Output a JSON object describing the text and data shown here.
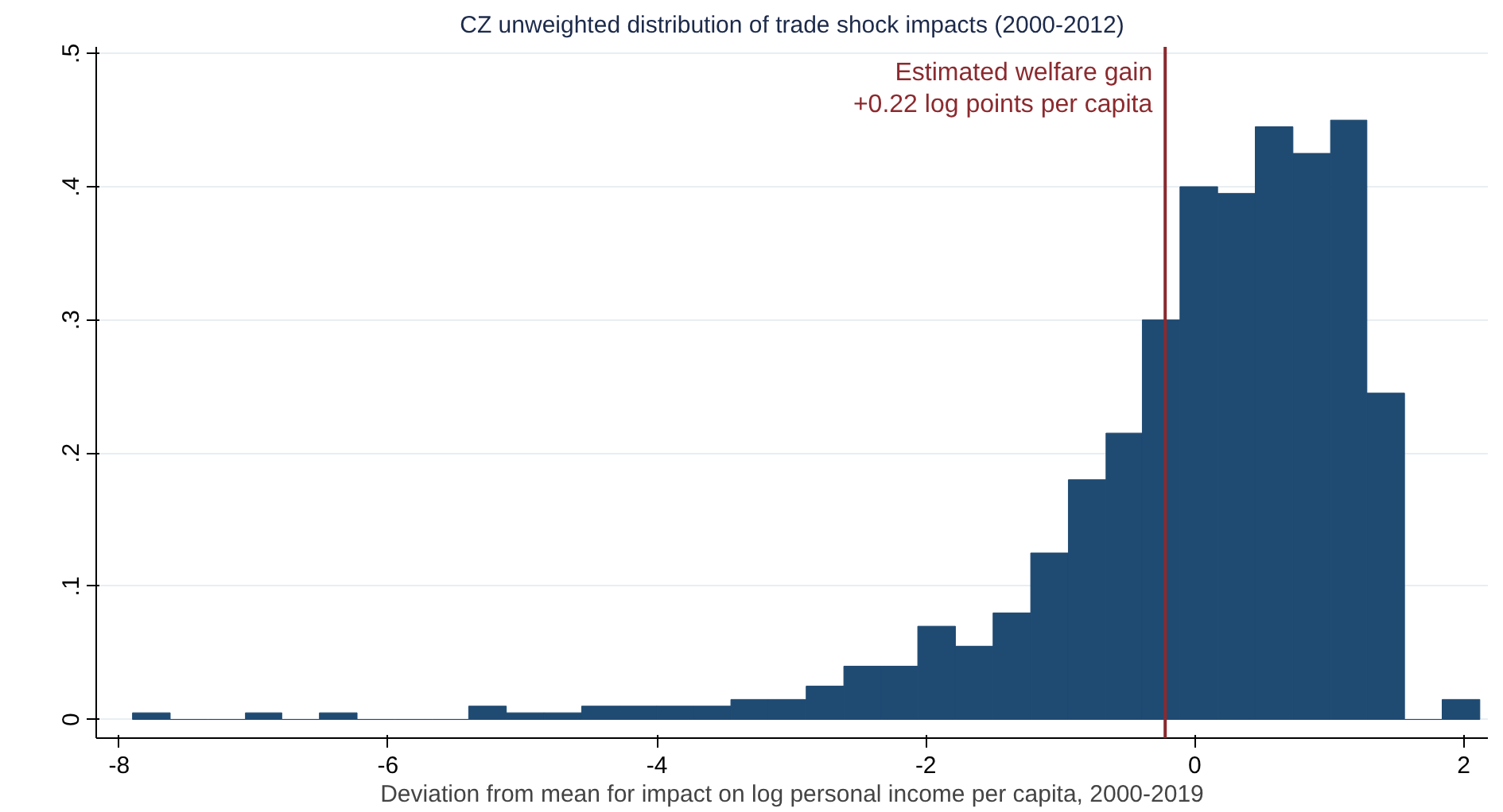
{
  "chart_data": {
    "type": "histogram",
    "title": "CZ unweighted distribution of trade shock impacts (2000-2012)",
    "xlabel": "Deviation from mean for impact on log personal income per capita, 2000-2019",
    "bins": [
      -7.9,
      -7.62,
      -7.34,
      -7.06,
      -6.79,
      -6.51,
      -6.23,
      -5.95,
      -5.67,
      -5.4,
      -5.12,
      -4.84,
      -4.56,
      -4.28,
      -4.0,
      -3.73,
      -3.45,
      -3.17,
      -2.89,
      -2.61,
      -2.33,
      -2.06,
      -1.78,
      -1.5,
      -1.22,
      -0.94,
      -0.66,
      -0.39,
      -0.11,
      0.17,
      0.45,
      0.73,
      1.01,
      1.28,
      1.56,
      1.84,
      2.12
    ],
    "values": [
      0.005,
      0,
      0,
      0.005,
      0,
      0.005,
      0,
      0,
      0,
      0.01,
      0.005,
      0.005,
      0.01,
      0.01,
      0.01,
      0.01,
      0.015,
      0.015,
      0.025,
      0.04,
      0.04,
      0.07,
      0.055,
      0.08,
      0.125,
      0.18,
      0.215,
      0.3,
      0.4,
      0.395,
      0.445,
      0.425,
      0.45,
      0.245,
      0,
      0.015
    ],
    "color": "#1f4a72",
    "xlim": [
      -8.17,
      2.18
    ],
    "xticks": [
      -8,
      -6,
      -4,
      -2,
      0,
      2
    ],
    "ylim": [
      -0.014,
      0.505
    ],
    "yticks": [
      {
        "value": 0,
        "label": "0"
      },
      {
        "value": 0.1,
        "label": ".1"
      },
      {
        "value": 0.2,
        "label": ".2"
      },
      {
        "value": 0.3,
        "label": ".3"
      },
      {
        "value": 0.4,
        "label": ".4"
      },
      {
        "value": 0.5,
        "label": ".5"
      }
    ],
    "grid": "y",
    "ref_lines": [
      {
        "axis": "x",
        "value": -0.22,
        "label": "Estimated welfare gain\n+0.22 log points per capita",
        "color": "#8b2a2e"
      }
    ]
  }
}
